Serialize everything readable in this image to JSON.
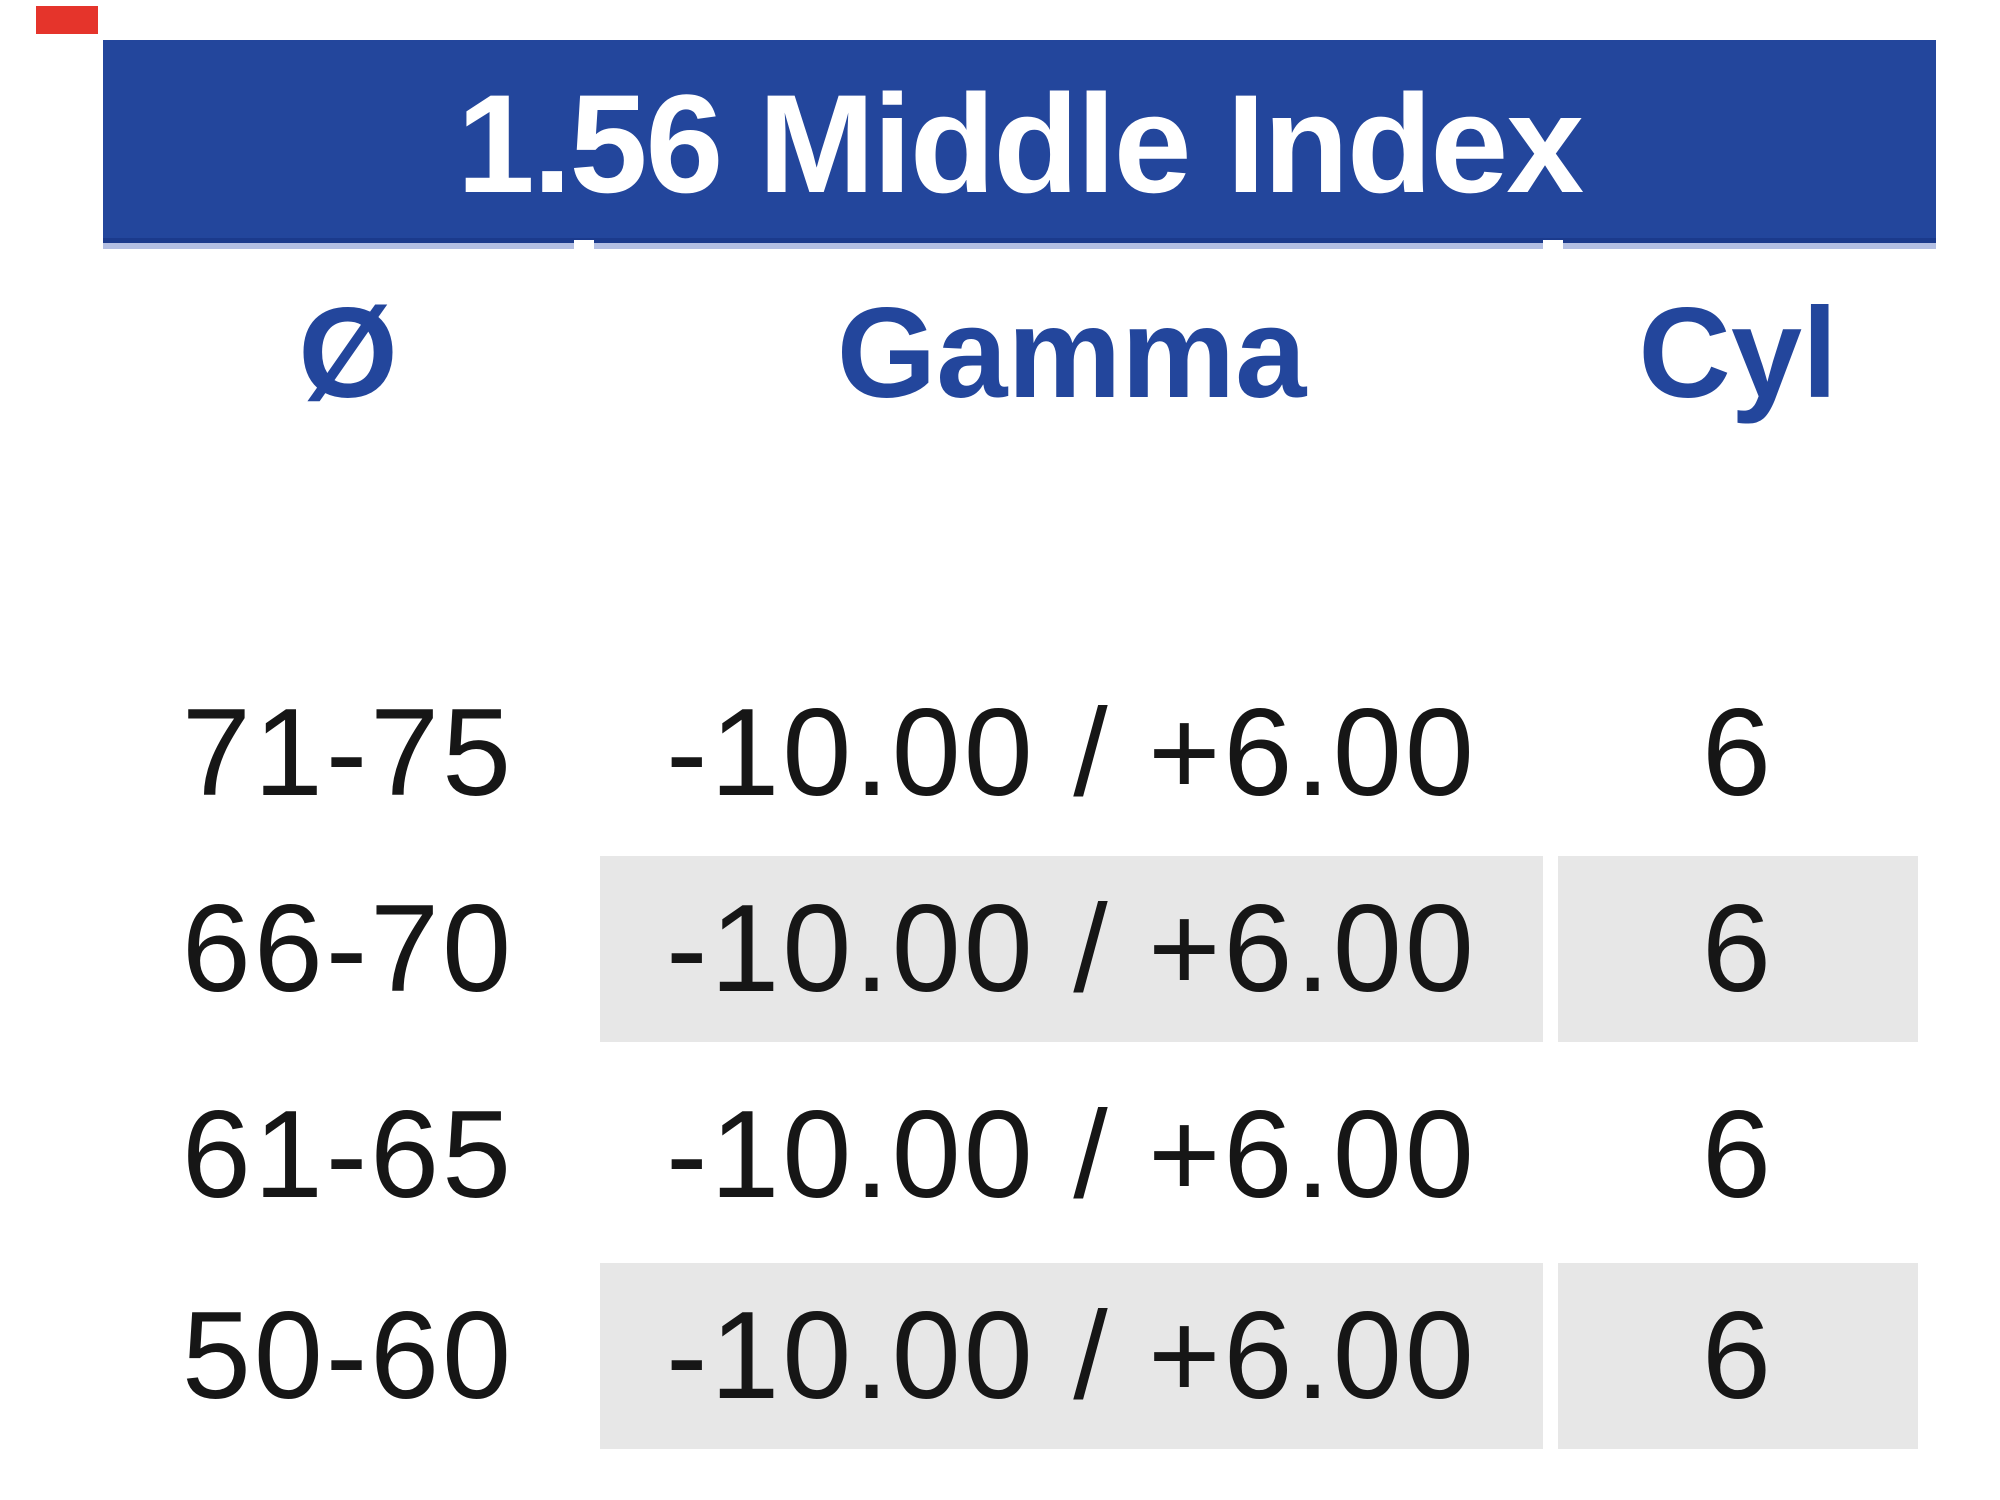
{
  "chart_data": {
    "type": "table",
    "title": "1.56 Middle Index",
    "columns": [
      "Ø",
      "Gamma",
      "Cyl"
    ],
    "rows": [
      [
        "71-75",
        "-10.00 / +6.00",
        "6"
      ],
      [
        "66-70",
        "-10.00 / +6.00",
        "6"
      ],
      [
        "61-65",
        "-10.00 / +6.00",
        "6"
      ],
      [
        "50-60",
        "-10.00 / +6.00",
        "6"
      ]
    ],
    "striped_row_indexes": [
      1,
      3
    ],
    "striped_columns": [
      "Gamma",
      "Cyl"
    ],
    "legend": "none",
    "grid": "off"
  },
  "colors": {
    "page_bg": "#ffffff",
    "header_bg": "#23469c",
    "header_text": "#ffffff",
    "header_edge": "#1b3a8c",
    "header_accent": "#b3bfe3",
    "column_header_text": "#23469c",
    "data_text": "#161616",
    "row_stripe": "#e7e7e7",
    "corner_mark": "#e5342b"
  }
}
